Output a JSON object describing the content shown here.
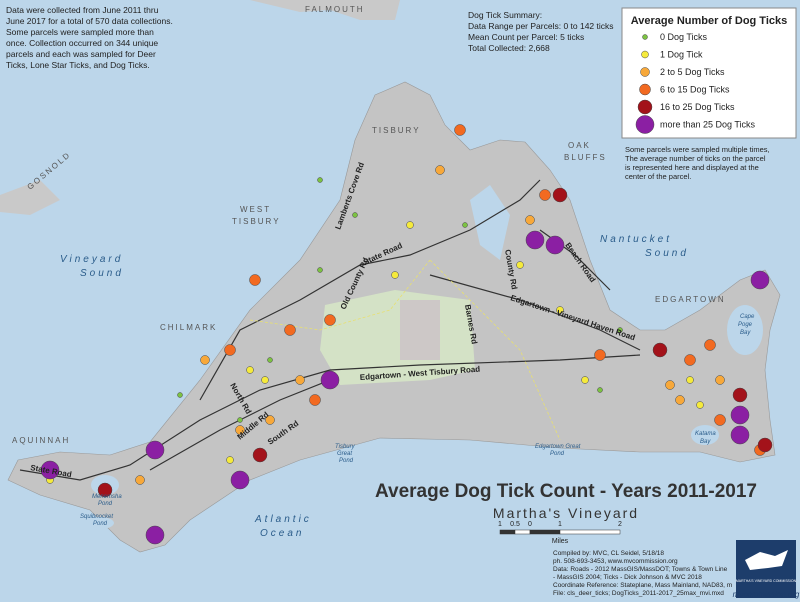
{
  "notes": [
    "Data were collected from June 2011 thru",
    "June 2017 for a total of 570 data collections.",
    "Some parcels were sampled more than",
    "once.  Collection occurred on 344 unique",
    "parcels and each was sampled for Deer",
    "Ticks, Lone Star Ticks, and Dog Ticks."
  ],
  "summary": [
    "Dog Tick Summary:",
    "Data Range per Parcels:  0 to 142 ticks",
    "Mean Count per Parcel:  5 ticks",
    "Total Collected:  2,668"
  ],
  "legend": {
    "title": "Average Number of Dog Ticks",
    "items": [
      {
        "label": "0 Dog Ticks",
        "color": "#7cc242"
      },
      {
        "label": "1 Dog Tick",
        "color": "#f5ea3c"
      },
      {
        "label": "2 to 5 Dog Ticks",
        "color": "#f7a83a"
      },
      {
        "label": "6 to 15 Dog Ticks",
        "color": "#f26a21"
      },
      {
        "label": "16 to 25 Dog Ticks",
        "color": "#a3121a"
      },
      {
        "label": "more than 25 Dog Ticks",
        "color": "#8b1fa3"
      }
    ]
  },
  "legend_note": [
    "Some parcels were sampled multiple times,",
    "The average number of ticks on the parcel",
    "is represented here and displayed at the",
    "center of the parcel."
  ],
  "title": "Average Dog Tick Count - Years 2011-2017",
  "subtitle": "Martha's Vineyard",
  "scale": {
    "ticks": [
      "1",
      "0.5",
      "0",
      "1",
      "2"
    ],
    "unit": "Miles"
  },
  "places": {
    "falmouth": "FALMOUTH",
    "gosnold": "GOSNOLD",
    "vineyard_sound": [
      "Vineyard",
      "Sound"
    ],
    "tisbury": "TISBURY",
    "oak_bluffs": [
      "OAK",
      "BLUFFS"
    ],
    "west_tisbury": [
      "WEST",
      "TISBURY"
    ],
    "nantucket_sound": [
      "Nantucket",
      "Sound"
    ],
    "edgartown": "EDGARTOWN",
    "chilmark": "CHILMARK",
    "aquinnah": "AQUINNAH",
    "atlantic": [
      "Atlantic",
      "Ocean"
    ],
    "cape_poge": [
      "Cape",
      "Poge",
      "Bay"
    ],
    "katama": [
      "Katama",
      "Bay"
    ],
    "tisbury_pond": [
      "Tisbury",
      "Great",
      "Pond"
    ],
    "edgartown_pond": [
      "Edgartown Great",
      "Pond"
    ],
    "menemsha": [
      "Menemsha",
      "Pond"
    ],
    "squibnocket": [
      "Squibnocket",
      "Pond"
    ]
  },
  "roads": {
    "state": "State Road",
    "ewt": "Edgartown - West Tisbury Road",
    "evh": "Edgartown - Vineyard Haven Road",
    "beach": "Beach Road",
    "old_county": "Old County Rd",
    "barnes": "Barnes Rd",
    "lambert": "Lamberts Cove Rd",
    "middle": "Middle Rd",
    "north": "North Rd",
    "south": "South Rd",
    "county": "County Rd",
    "lobsterville": "State Road"
  },
  "credits": [
    "Compiled by: MVC, CL Seidel, 5/18/18",
    "ph. 508-693-3453, www.mvcommission.org",
    "Data: Roads - 2012 MassGIS/MassDOT; Towns & Town Line",
    "- MassGIS 2004; Ticks - Dick Johnson & MVC 2018",
    "Coordinate Reference: Stateplane, Mass Mainland, NAD83, m",
    "File: cls_deer_ticks; DogTicks_2011-2017_25max_mvi.mxd"
  ],
  "logo": {
    "name": "MARTHA'S VINEYARD COMMISSION",
    "url": "mvcommission.org"
  }
}
